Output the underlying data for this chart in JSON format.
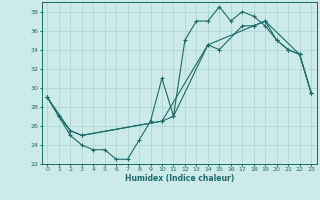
{
  "xlabel": "Humidex (Indice chaleur)",
  "bg_color": "#cceae7",
  "grid_color": "#aad4d0",
  "line_color": "#1a6b6b",
  "xlim": [
    -0.5,
    23.5
  ],
  "ylim": [
    22,
    39
  ],
  "yticks": [
    22,
    24,
    26,
    28,
    30,
    32,
    34,
    36,
    38
  ],
  "xticks": [
    0,
    1,
    2,
    3,
    4,
    5,
    6,
    7,
    8,
    9,
    10,
    11,
    12,
    13,
    14,
    15,
    16,
    17,
    18,
    19,
    20,
    21,
    22,
    23
  ],
  "series1_x": [
    0,
    1,
    2,
    3,
    4,
    5,
    6,
    7,
    8,
    9,
    10,
    11,
    12,
    13,
    14,
    15,
    16,
    17,
    18,
    19,
    20,
    21,
    22,
    23
  ],
  "series1_y": [
    29,
    27,
    25,
    24,
    23.5,
    23.5,
    22.5,
    22.5,
    24.5,
    26.5,
    31,
    27,
    35,
    37,
    37,
    38.5,
    37,
    38,
    37.5,
    36.5,
    35,
    34,
    33.5,
    29.5
  ],
  "series2_x": [
    0,
    1,
    2,
    3,
    10,
    11,
    14,
    15,
    17,
    18,
    19,
    20,
    21,
    22,
    23
  ],
  "series2_y": [
    29,
    27,
    25.5,
    25,
    26.5,
    27,
    34.5,
    34,
    36.5,
    36.5,
    37,
    35,
    34,
    33.5,
    29.5
  ],
  "series3_x": [
    0,
    2,
    3,
    10,
    14,
    18,
    19,
    22,
    23
  ],
  "series3_y": [
    29,
    25.5,
    25,
    26.5,
    34.5,
    36.5,
    37,
    33.5,
    29.5
  ]
}
